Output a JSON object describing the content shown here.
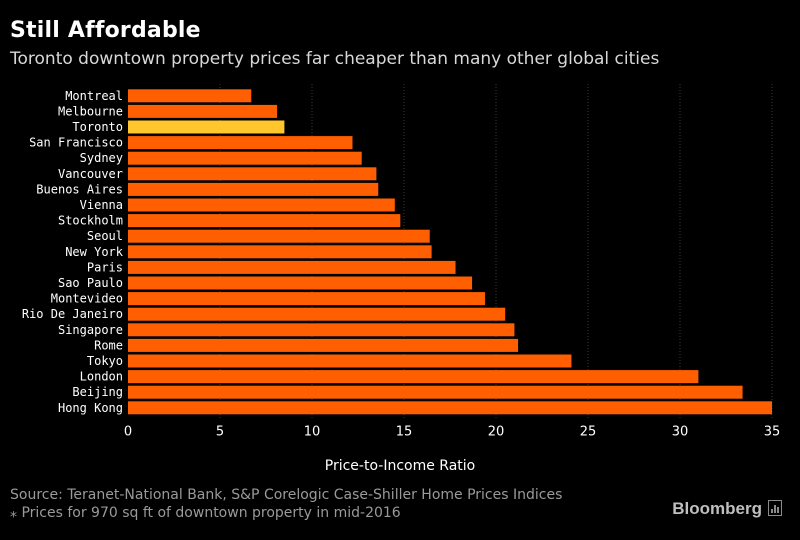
{
  "header": {
    "title": "Still Affordable",
    "subtitle": "Toronto downtown property prices far cheaper than many other global cities"
  },
  "colors": {
    "bar": "#ff5f00",
    "highlight": "#ffc72c",
    "grid": "#3a3a3a",
    "axis_text": "#ffffff"
  },
  "chart_data": {
    "type": "bar",
    "orientation": "horizontal",
    "title": "Still Affordable",
    "xlabel": "Price-to-Income Ratio",
    "ylabel": "",
    "xlim": [
      0,
      35
    ],
    "xticks": [
      0,
      5,
      10,
      15,
      20,
      25,
      30,
      35
    ],
    "grid": true,
    "highlight": "Toronto",
    "categories": [
      "Montreal",
      "Melbourne",
      "Toronto",
      "San Francisco",
      "Sydney",
      "Vancouver",
      "Buenos Aires",
      "Vienna",
      "Stockholm",
      "Seoul",
      "New York",
      "Paris",
      "Sao Paulo",
      "Montevideo",
      "Rio De Janeiro",
      "Singapore",
      "Rome",
      "Tokyo",
      "London",
      "Beijing",
      "Hong Kong"
    ],
    "values": [
      6.7,
      8.1,
      8.5,
      12.2,
      12.7,
      13.5,
      13.6,
      14.5,
      14.8,
      16.4,
      16.5,
      17.8,
      18.7,
      19.4,
      20.5,
      21.0,
      21.2,
      24.1,
      31.0,
      33.4,
      35.0
    ]
  },
  "footer": {
    "source": "Source: Teranet-National Bank, S&P Corelogic Case-Shiller Home Prices Indices",
    "note": "⁎ Prices for 970 sq ft of downtown property in mid-2016",
    "brand": "Bloomberg"
  }
}
